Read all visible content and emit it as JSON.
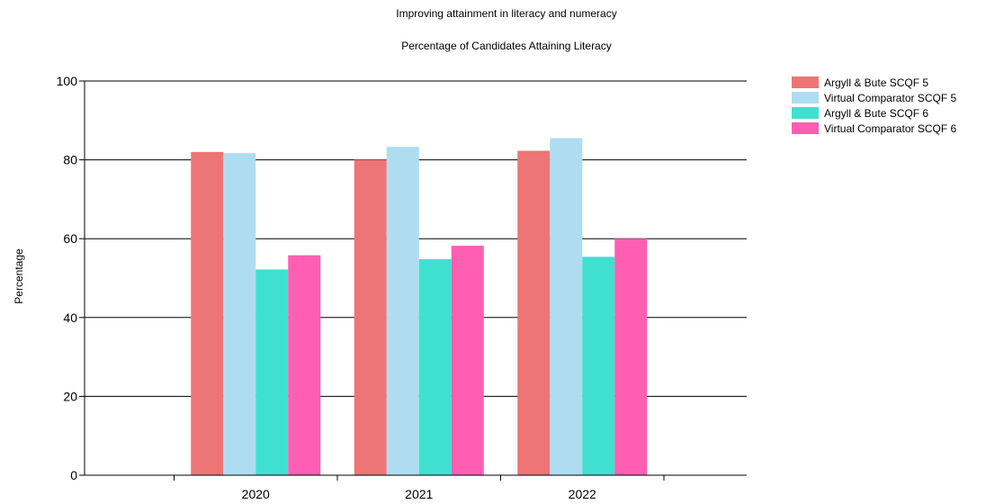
{
  "chart_data": {
    "type": "bar",
    "title": "Improving attainment in literacy and numeracy",
    "subtitle": "Percentage of Candidates Attaining Literacy",
    "ylabel": "Percentage",
    "xlabel": "",
    "categories": [
      "2020",
      "2021",
      "2022"
    ],
    "ylim": [
      0,
      100
    ],
    "yticks": [
      0,
      20,
      40,
      60,
      80,
      100
    ],
    "grid": true,
    "legend_position": "top-right",
    "series": [
      {
        "name": "Argyll & Bute SCQF 5",
        "color": "#ED7575",
        "values": [
          82,
          80,
          82.3
        ]
      },
      {
        "name": "Virtual Comparator SCQF 5",
        "color": "#AEDDF2",
        "values": [
          81.7,
          83.3,
          85.5
        ]
      },
      {
        "name": "Argyll & Bute SCQF 6",
        "color": "#40E0D0",
        "values": [
          52.2,
          54.8,
          55.4
        ]
      },
      {
        "name": "Virtual Comparator SCQF 6",
        "color": "#FF5EB2",
        "values": [
          55.8,
          58.2,
          60
        ]
      }
    ]
  }
}
